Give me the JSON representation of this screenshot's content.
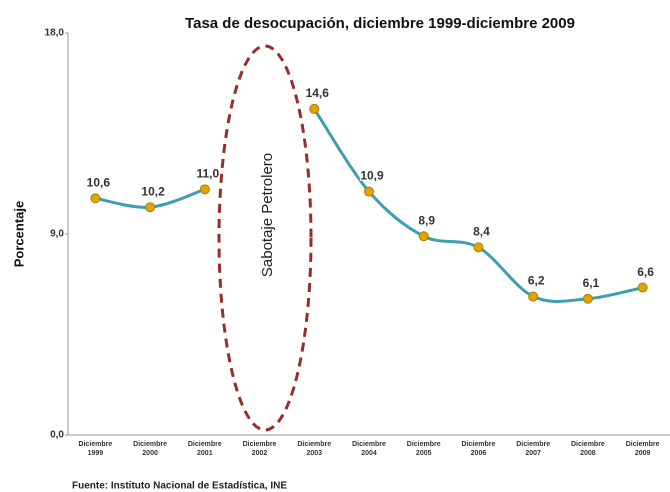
{
  "chart_data": {
    "type": "line",
    "title": "Tasa de desocupación, diciembre 1999-diciembre 2009",
    "y_label": "Porcentaje",
    "annotation": "Sabotaje Petrolero",
    "source": "Fuente: Instituto Nacional de Estadística, INE",
    "categories": [
      "Diciembre 1999",
      "Diciembre 2000",
      "Diciembre 2001",
      "Diciembre 2002",
      "Diciembre 2003",
      "Diciembre 2004",
      "Diciembre 2005",
      "Diciembre 2006",
      "Diciembre 2007",
      "Diciembre 2008",
      "Diciembre 2009"
    ],
    "values": [
      10.6,
      10.2,
      11.0,
      null,
      14.6,
      10.9,
      8.9,
      8.4,
      6.2,
      6.1,
      6.6
    ],
    "value_labels": [
      "10,6",
      "10,2",
      "11,0",
      null,
      "14,6",
      "10,9",
      "8,9",
      "8,4",
      "6,2",
      "6,1",
      "6,6"
    ],
    "color": "#3d9db3",
    "marker_color": "#e0a500",
    "ylim": [
      0,
      18
    ],
    "yticks": [
      {
        "value": 0,
        "label": "0,0"
      },
      {
        "value": 9,
        "label": "9,0"
      },
      {
        "value": 18,
        "label": "18,0"
      }
    ],
    "grid": false
  }
}
